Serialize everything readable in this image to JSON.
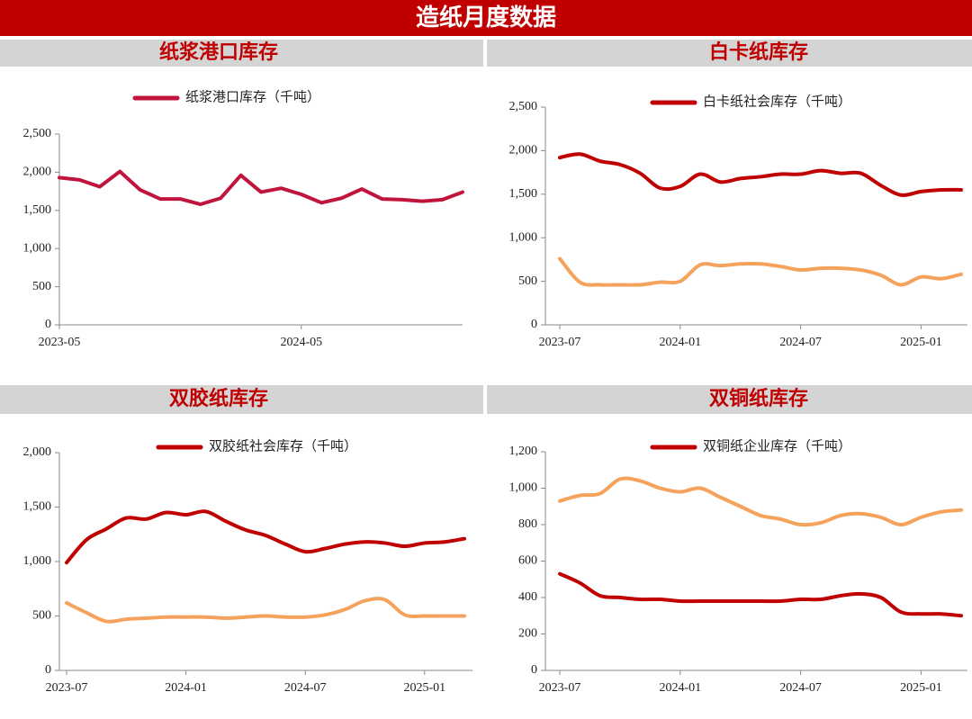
{
  "title": "造纸月度数据",
  "chart_data": [
    {
      "type": "line",
      "title": "纸浆港口库存",
      "smooth": false,
      "x": [
        "2023-05",
        "2023-06",
        "2023-07",
        "2023-08",
        "2023-09",
        "2023-10",
        "2023-11",
        "2023-12",
        "2024-01",
        "2024-02",
        "2024-03",
        "2024-04",
        "2024-05",
        "2024-06",
        "2024-07",
        "2024-08",
        "2024-09",
        "2024-10",
        "2024-11",
        "2024-12",
        "2025-01"
      ],
      "xticks": [
        "2023-05",
        "2024-05"
      ],
      "ylim": [
        0,
        2500
      ],
      "yticks": [
        0,
        500,
        {
          "value": 1000,
          "label": "1,000"
        },
        {
          "value": 1500,
          "label": "1,500"
        },
        {
          "value": 2000,
          "label": "2,000"
        },
        {
          "value": 2500,
          "label": "2,500"
        }
      ],
      "series": [
        {
          "name": "纸浆港口库存（千吨）",
          "color": "#c0143c",
          "values": [
            1930,
            1900,
            1810,
            2010,
            1770,
            1650,
            1650,
            1580,
            1660,
            1960,
            1740,
            1790,
            1710,
            1600,
            1660,
            1780,
            1650,
            1640,
            1620,
            1640,
            1740
          ]
        }
      ]
    },
    {
      "type": "line",
      "title": "白卡纸库存",
      "smooth": true,
      "x": [
        "2023-07",
        "2023-08",
        "2023-09",
        "2023-10",
        "2023-11",
        "2023-12",
        "2024-01",
        "2024-02",
        "2024-03",
        "2024-04",
        "2024-05",
        "2024-06",
        "2024-07",
        "2024-08",
        "2024-09",
        "2024-10",
        "2024-11",
        "2024-12",
        "2025-01",
        "2025-02",
        "2025-03"
      ],
      "xticks": [
        "2023-07",
        "2024-01",
        "2024-07",
        "2025-01"
      ],
      "ylim": [
        0,
        2500
      ],
      "yticks": [
        0,
        500,
        {
          "value": 1000,
          "label": "1,000"
        },
        {
          "value": 1500,
          "label": "1,500"
        },
        {
          "value": 2000,
          "label": "2,000"
        },
        {
          "value": 2500,
          "label": "2,500"
        }
      ],
      "series": [
        {
          "name": "白卡纸社会库存（千吨）",
          "color": "#c00000",
          "values": [
            1920,
            1960,
            1880,
            1840,
            1740,
            1570,
            1590,
            1730,
            1640,
            1680,
            1700,
            1730,
            1730,
            1770,
            1740,
            1740,
            1600,
            1490,
            1530,
            1550,
            1550
          ]
        },
        {
          "color": "#f5a25d",
          "values": [
            760,
            490,
            460,
            460,
            460,
            490,
            500,
            690,
            680,
            700,
            700,
            670,
            630,
            650,
            650,
            630,
            570,
            460,
            550,
            530,
            580
          ]
        }
      ]
    },
    {
      "type": "line",
      "title": "双胶纸库存",
      "smooth": true,
      "x": [
        "2023-07",
        "2023-08",
        "2023-09",
        "2023-10",
        "2023-11",
        "2023-12",
        "2024-01",
        "2024-02",
        "2024-03",
        "2024-04",
        "2024-05",
        "2024-06",
        "2024-07",
        "2024-08",
        "2024-09",
        "2024-10",
        "2024-11",
        "2024-12",
        "2025-01",
        "2025-02",
        "2025-03"
      ],
      "xticks": [
        "2023-07",
        "2024-01",
        "2024-07",
        "2025-01"
      ],
      "ylim": [
        0,
        2000
      ],
      "yticks": [
        0,
        500,
        {
          "value": 1000,
          "label": "1,000"
        },
        {
          "value": 1500,
          "label": "1,500"
        },
        {
          "value": 2000,
          "label": "2,000"
        }
      ],
      "series": [
        {
          "name": "双胶纸社会库存（千吨）",
          "color": "#c00000",
          "values": [
            990,
            1200,
            1300,
            1400,
            1390,
            1450,
            1430,
            1460,
            1370,
            1290,
            1240,
            1160,
            1090,
            1120,
            1160,
            1180,
            1170,
            1140,
            1170,
            1180,
            1210
          ]
        },
        {
          "color": "#f5a25d",
          "values": [
            620,
            530,
            450,
            470,
            480,
            490,
            490,
            490,
            480,
            490,
            500,
            490,
            490,
            510,
            560,
            640,
            650,
            510,
            500,
            500,
            500
          ]
        }
      ]
    },
    {
      "type": "line",
      "title": "双铜纸库存",
      "smooth": true,
      "x": [
        "2023-07",
        "2023-08",
        "2023-09",
        "2023-10",
        "2023-11",
        "2023-12",
        "2024-01",
        "2024-02",
        "2024-03",
        "2024-04",
        "2024-05",
        "2024-06",
        "2024-07",
        "2024-08",
        "2024-09",
        "2024-10",
        "2024-11",
        "2024-12",
        "2025-01",
        "2025-02",
        "2025-03"
      ],
      "xticks": [
        "2023-07",
        "2024-01",
        "2024-07",
        "2025-01"
      ],
      "ylim": [
        0,
        1200
      ],
      "yticks": [
        0,
        200,
        400,
        600,
        800,
        {
          "value": 1000,
          "label": "1,000"
        },
        {
          "value": 1200,
          "label": "1,200"
        }
      ],
      "series": [
        {
          "name": "双铜纸企业库存（千吨）",
          "color": "#c00000",
          "values": [
            530,
            480,
            410,
            400,
            390,
            390,
            380,
            380,
            380,
            380,
            380,
            380,
            390,
            390,
            410,
            420,
            400,
            320,
            310,
            310,
            300
          ]
        },
        {
          "color": "#f5a25d",
          "values": [
            930,
            960,
            970,
            1050,
            1040,
            1000,
            980,
            1000,
            950,
            900,
            850,
            830,
            800,
            810,
            850,
            860,
            840,
            800,
            840,
            870,
            880
          ]
        }
      ]
    }
  ]
}
